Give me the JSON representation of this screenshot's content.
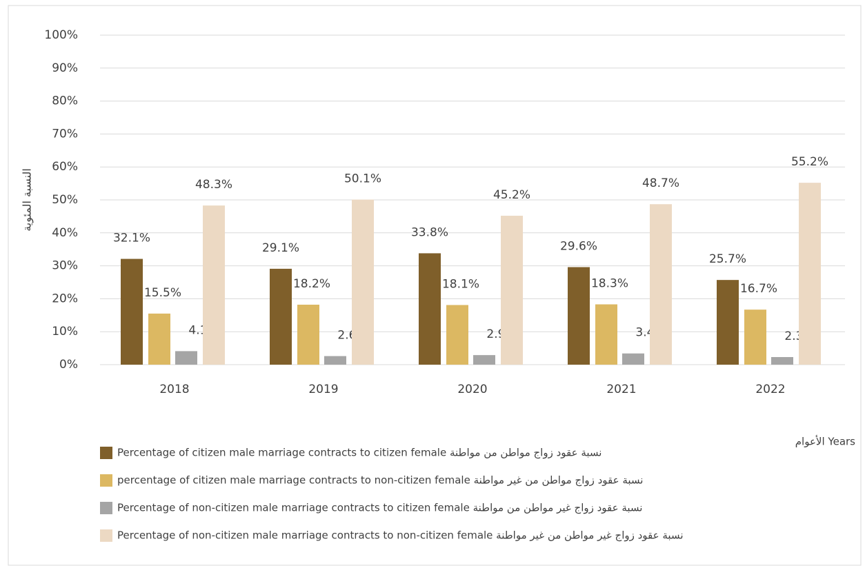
{
  "chart_data": {
    "type": "bar",
    "categories": [
      "2018",
      "2019",
      "2020",
      "2021",
      "2022"
    ],
    "x_label": "الأعوام Years",
    "y_label": "النسبة المئوية",
    "ylim": [
      0,
      100
    ],
    "yticks": [
      {
        "value": 0,
        "label": "0%"
      },
      {
        "value": 10,
        "label": "10%"
      },
      {
        "value": 20,
        "label": "20%"
      },
      {
        "value": 30,
        "label": "30%"
      },
      {
        "value": 40,
        "label": "40%"
      },
      {
        "value": 50,
        "label": "50%"
      },
      {
        "value": 60,
        "label": "60%"
      },
      {
        "value": 70,
        "label": "70%"
      },
      {
        "value": 80,
        "label": "80%"
      },
      {
        "value": 90,
        "label": "90%"
      },
      {
        "value": 100,
        "label": "100%"
      }
    ],
    "grid": true,
    "legend": "bottom",
    "series": [
      {
        "name": "Percentage of citizen male marriage contracts to citizen female نسبة عقود زواج مواطن من مواطنة",
        "color": "#7f5f2a",
        "values": [
          32.1,
          29.1,
          33.8,
          29.6,
          25.7
        ],
        "value_labels": [
          "32.1%",
          "29.1%",
          "33.8%",
          "29.6%",
          "25.7%"
        ]
      },
      {
        "name": "percentage of citizen male marriage contracts to non-citizen female نسبة عقود زواج مواطن من غير مواطنة",
        "color": "#dcb862",
        "values": [
          15.5,
          18.2,
          18.1,
          18.3,
          16.7
        ],
        "value_labels": [
          "15.5%",
          "18.2%",
          "18.1%",
          "18.3%",
          "16.7%"
        ]
      },
      {
        "name": "Percentage of non-citizen male marriage contracts to citizen female نسبة عقود زواج غير مواطن من مواطنة",
        "color": "#a5a5a5",
        "values": [
          4.1,
          2.6,
          2.9,
          3.4,
          2.3
        ],
        "value_labels": [
          "4.1%",
          "2.6%",
          "2.9%",
          "3.4%",
          "2.3%"
        ]
      },
      {
        "name": "Percentage of non-citizen male marriage contracts to non-citizen female نسبة عقود زواج غير مواطن من غير مواطنة",
        "color": "#ecd9c3",
        "values": [
          48.3,
          50.1,
          45.2,
          48.7,
          55.2
        ],
        "value_labels": [
          "48.3%",
          "50.1%",
          "45.2%",
          "48.7%",
          "55.2%"
        ]
      }
    ]
  }
}
